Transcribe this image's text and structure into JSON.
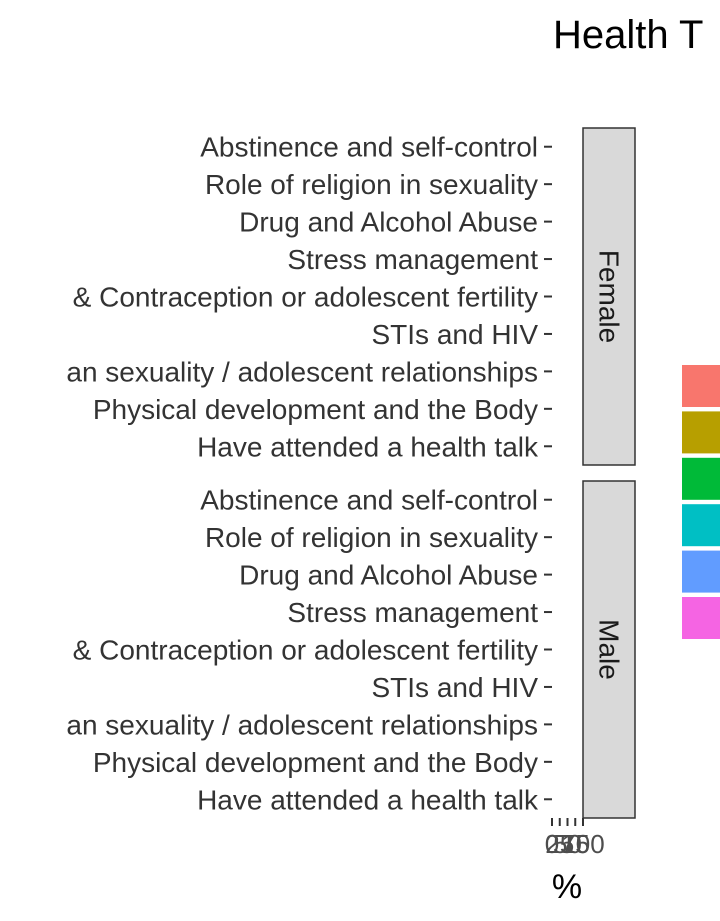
{
  "chart_data": {
    "type": "bar",
    "title": "Health T",
    "xlabel": "%",
    "ylabel": "",
    "categories": [
      "Abstinence and self-control",
      "Role of religion in sexuality ",
      "Drug and Alcohol Abuse",
      "Stress management",
      "& Contraception or adolescent fertility",
      "STIs and HIV",
      "an sexuality / adolescent relationships",
      "Physical development and the Body",
      "Have attended a health talk"
    ],
    "facets": [
      "Female",
      "Male"
    ],
    "x_tick_labels": [
      "0",
      "25",
      "50",
      "75",
      "100"
    ],
    "xlim": [
      0,
      100
    ],
    "legend_position": "right",
    "legend_colors": [
      "#F8766D",
      "#B79F00",
      "#00BA38",
      "#00BFC4",
      "#619CFF",
      "#F564E3"
    ],
    "grid": false
  }
}
